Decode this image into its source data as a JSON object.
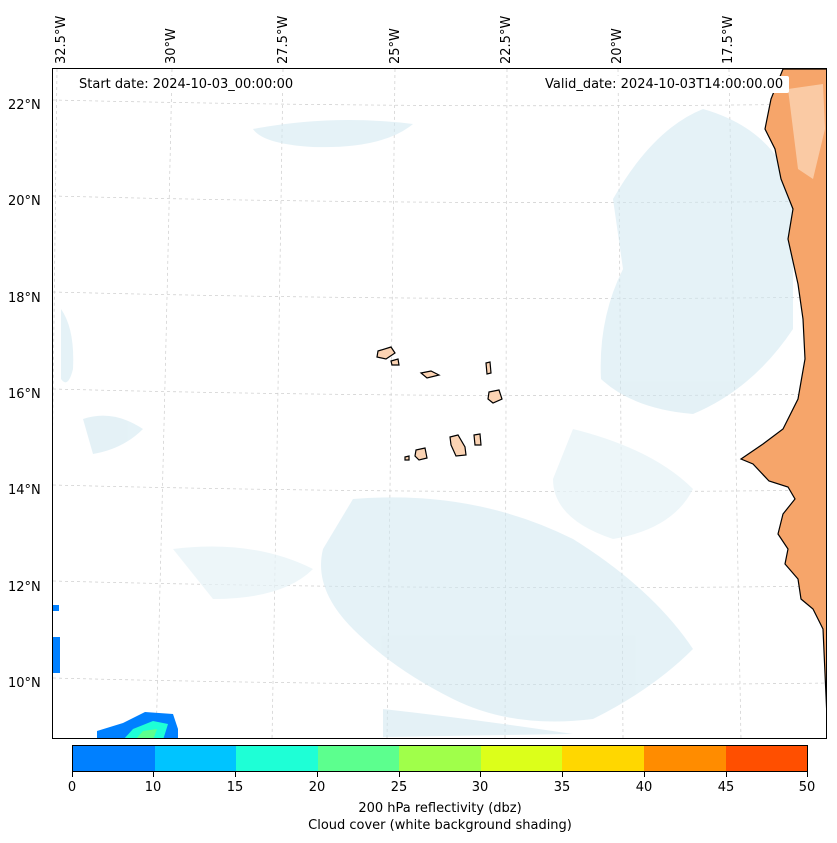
{
  "map": {
    "start_date_text": "Start date: 2024-10-03_00:00:00",
    "valid_date_text": "Valid_date: 2024-10-03T14:00:00.00",
    "longitude_labels": [
      "32.5°W",
      "30°W",
      "27.5°W",
      "25°W",
      "22.5°W",
      "20°W",
      "17.5°W"
    ],
    "latitude_labels": [
      "22°N",
      "20°N",
      "18°N",
      "16°N",
      "14°N",
      "12°N",
      "10°N"
    ],
    "land_color": "#f6a56a",
    "cloud_color": "#cfe7f0",
    "coastline_color": "#000000"
  },
  "colorbar": {
    "tick_labels": [
      "0",
      "10",
      "15",
      "20",
      "25",
      "30",
      "35",
      "40",
      "45",
      "50"
    ],
    "colors": [
      "#0080ff",
      "#00c4ff",
      "#1effd6",
      "#5cff8e",
      "#a0ff4a",
      "#dcff1a",
      "#ffd700",
      "#ff8c00",
      "#ff4f00"
    ],
    "label_line1": "200 hPa reflectivity (dbz)",
    "label_line2": "Cloud cover (white background shading)"
  }
}
